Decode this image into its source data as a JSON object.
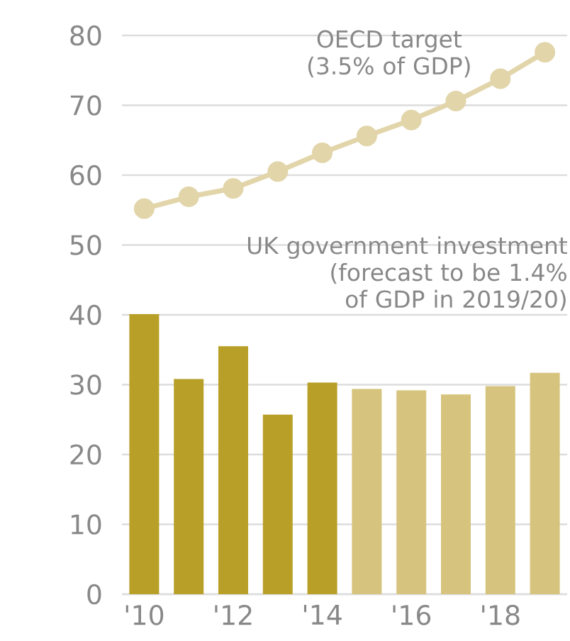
{
  "chart_data": {
    "type": "bar",
    "categories": [
      "'10",
      null,
      "'12",
      null,
      "'14",
      null,
      "'16",
      null,
      "'18",
      null
    ],
    "series": [
      {
        "name": "UK government investment (forecast to be 1.4% of GDP in 2019/20)",
        "colors": [
          "#b8a028",
          "#b8a028",
          "#b8a028",
          "#b8a028",
          "#b8a028",
          "#d6c47e",
          "#d6c47e",
          "#d6c47e",
          "#d6c47e",
          "#d6c47e"
        ],
        "values": [
          40.1,
          30.8,
          35.5,
          25.7,
          30.3,
          29.4,
          29.2,
          28.6,
          29.8,
          31.7
        ]
      },
      {
        "name": "OECD target (3.5% of GDP)",
        "type": "line",
        "color": "#e2d5aa",
        "marker": "circle",
        "values": [
          55.2,
          56.9,
          58.1,
          60.5,
          63.2,
          65.6,
          67.9,
          70.6,
          73.8,
          77.6
        ]
      }
    ],
    "ylim": [
      0,
      80
    ],
    "yticks": [
      0,
      10,
      20,
      30,
      40,
      50,
      60,
      70,
      80
    ],
    "grid": "y",
    "legend": false
  }
}
